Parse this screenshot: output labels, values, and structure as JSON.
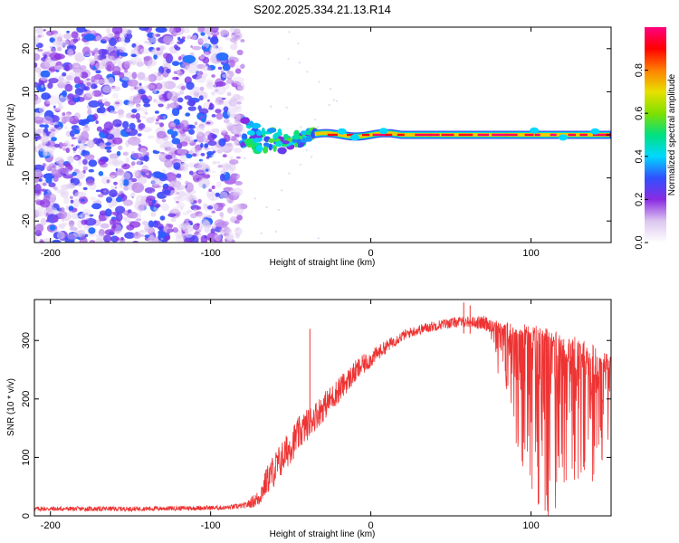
{
  "chart_data": [
    {
      "type": "heatmap",
      "title": "S202.2025.334.21.13.R14",
      "xlabel": "Height of straight line (km)",
      "ylabel": "Frequency (Hz)",
      "xlim": [
        -210,
        150
      ],
      "ylim": [
        -25,
        25
      ],
      "x_ticks": [
        -200,
        -100,
        0,
        100
      ],
      "x_tick_labels": [
        "-200",
        "-100",
        "0",
        "100"
      ],
      "y_ticks": [
        -20,
        -10,
        0,
        10,
        20
      ],
      "y_tick_labels": [
        "-20",
        "-10",
        "0",
        "10",
        "20"
      ],
      "regions": [
        {
          "name": "noise",
          "x_range": [
            -210,
            -80
          ],
          "y_range": [
            -25,
            25
          ],
          "amplitude_range": [
            0.0,
            0.25
          ]
        },
        {
          "name": "transition",
          "x_range": [
            -80,
            -35
          ],
          "y_range": [
            -5,
            3
          ],
          "amplitude_range": [
            0.2,
            0.6
          ]
        },
        {
          "name": "signal-line",
          "x_range": [
            -35,
            150
          ],
          "y_center": 0.0,
          "amplitude_range": [
            0.6,
            1.0
          ]
        }
      ],
      "colorbar": {
        "label": "Normalized spectral amplitude",
        "range": [
          0.0,
          1.0
        ],
        "ticks": [
          0.0,
          0.2,
          0.4,
          0.6,
          0.8
        ],
        "tick_labels": [
          "0.0",
          "0.2",
          "0.4",
          "0.6",
          "0.8"
        ],
        "colors": [
          "#ffffff",
          "#dcc6f0",
          "#8a2be2",
          "#3050ff",
          "#00d8ff",
          "#00e080",
          "#80e000",
          "#e8e000",
          "#ff8000",
          "#ff0000",
          "#ff0080"
        ]
      }
    },
    {
      "type": "line",
      "xlabel": "Height of straight line (km)",
      "ylabel": "SNR (10 * v/v)",
      "xlim": [
        -210,
        150
      ],
      "ylim": [
        0,
        370
      ],
      "x_ticks": [
        -200,
        -100,
        0,
        100
      ],
      "x_tick_labels": [
        "-200",
        "-100",
        "0",
        "100"
      ],
      "y_ticks": [
        0,
        100,
        200,
        300
      ],
      "y_tick_labels": [
        "0",
        "100",
        "200",
        "300"
      ],
      "series": [
        {
          "name": "SNR",
          "color": "#ee3333",
          "x": [
            -210,
            -180,
            -150,
            -120,
            -90,
            -78,
            -70,
            -65,
            -60,
            -55,
            -50,
            -45,
            -40,
            -35,
            -30,
            -25,
            -20,
            -15,
            -10,
            -5,
            0,
            5,
            10,
            15,
            20,
            25,
            30,
            35,
            40,
            45,
            50,
            55,
            60,
            65,
            70,
            75,
            80,
            85,
            90,
            95,
            100,
            105,
            110,
            115,
            120,
            125,
            130,
            135,
            140,
            145,
            150
          ],
          "values": [
            12,
            12,
            12,
            13,
            14,
            18,
            30,
            60,
            80,
            100,
            120,
            140,
            155,
            170,
            185,
            200,
            215,
            230,
            245,
            258,
            268,
            280,
            290,
            300,
            308,
            314,
            318,
            322,
            325,
            328,
            330,
            332,
            332,
            331,
            330,
            328,
            326,
            324,
            322,
            320,
            318,
            315,
            312,
            310,
            306,
            300,
            295,
            290,
            282,
            275,
            268
          ],
          "spread": [
            8,
            8,
            8,
            8,
            8,
            10,
            30,
            50,
            60,
            60,
            60,
            60,
            55,
            50,
            50,
            45,
            45,
            40,
            40,
            35,
            30,
            25,
            22,
            20,
            18,
            18,
            18,
            18,
            18,
            18,
            18,
            18,
            18,
            20,
            25,
            30,
            40,
            60,
            90,
            120,
            140,
            150,
            150,
            150,
            140,
            130,
            120,
            110,
            100,
            80,
            60
          ],
          "spikes": [
            [
              -38,
              320
            ],
            [
              -20,
              235
            ],
            [
              58,
              365
            ],
            [
              62,
              360
            ]
          ]
        }
      ]
    }
  ]
}
